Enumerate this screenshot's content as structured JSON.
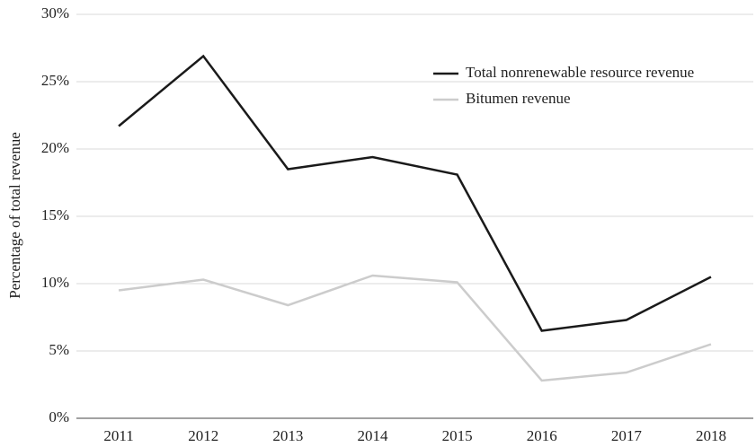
{
  "chart_data": {
    "type": "line",
    "y_label": "Percentage of total revenue",
    "categories": [
      "2011",
      "2012",
      "2013",
      "2014",
      "2015",
      "2016",
      "2017",
      "2018"
    ],
    "series": [
      {
        "name": "Total nonrenewable resource revenue",
        "color": "#1a1a1a",
        "values": [
          21.7,
          26.9,
          18.5,
          19.4,
          18.1,
          6.5,
          7.3,
          10.5
        ]
      },
      {
        "name": "Bitumen revenue",
        "color": "#cccccc",
        "values": [
          9.5,
          10.3,
          8.4,
          10.6,
          10.1,
          2.8,
          3.4,
          5.5
        ]
      }
    ],
    "ylim": [
      0,
      30
    ],
    "yticks": [
      {
        "value": 0,
        "label": "0%"
      },
      {
        "value": 5,
        "label": "5%"
      },
      {
        "value": 10,
        "label": "10%"
      },
      {
        "value": 15,
        "label": "15%"
      },
      {
        "value": 20,
        "label": "20%"
      },
      {
        "value": 25,
        "label": "25%"
      },
      {
        "value": 30,
        "label": "30%"
      }
    ],
    "grid": true,
    "legend": "upper right"
  }
}
